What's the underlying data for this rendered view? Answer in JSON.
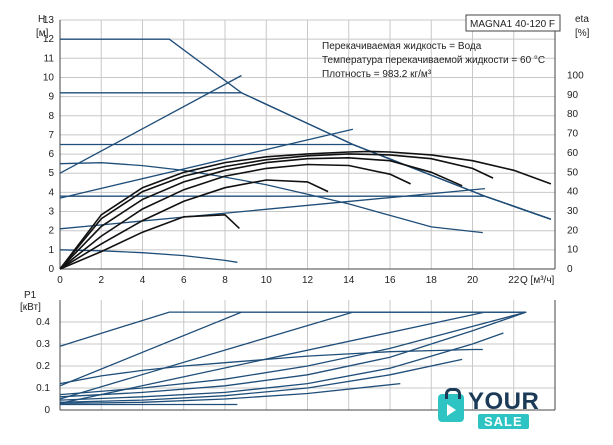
{
  "chart_data": [
    {
      "id": "head",
      "type": "line",
      "title": "MAGNA1 40-120 F",
      "info": [
        "Перекачиваемая жидкость = Вода",
        "Температура перекачиваемой жидкости = 60 °C",
        "Плотность = 983.2 кг/м³"
      ],
      "ylabel": "H",
      "yunit": "[м]",
      "y2label": "eta",
      "y2unit": "[%]",
      "xlabel": "Q [м³/ч]",
      "xlim": [
        0,
        24
      ],
      "ylim": [
        0,
        13
      ],
      "y2lim": [
        0,
        100
      ],
      "xticks": [
        0,
        2,
        4,
        6,
        8,
        10,
        12,
        14,
        16,
        18,
        20,
        22
      ],
      "yticks": [
        0,
        1,
        2,
        3,
        4,
        5,
        6,
        7,
        8,
        9,
        10,
        11,
        12,
        13
      ],
      "y2ticks": [
        0,
        10,
        20,
        30,
        40,
        50,
        60,
        70,
        80,
        90,
        100
      ],
      "grid": true,
      "pump_curves": [
        {
          "x": [
            0,
            5.3,
            8.8,
            14.2,
            20.6,
            23.8
          ],
          "y": [
            12,
            12,
            9.2,
            6.5,
            3.8,
            2.6
          ]
        },
        {
          "x": [
            0,
            8.8,
            14.2,
            20.6,
            23.8
          ],
          "y": [
            9.2,
            9.2,
            6.5,
            3.8,
            2.6
          ]
        },
        {
          "x": [
            0,
            14.2,
            20.6,
            23.8
          ],
          "y": [
            6.5,
            6.5,
            3.8,
            2.6
          ]
        },
        {
          "x": [
            0,
            20.6,
            23.8
          ],
          "y": [
            3.8,
            3.8,
            2.6
          ]
        }
      ],
      "system_curves": [
        {
          "x": [
            0,
            8.8
          ],
          "y": [
            5.0,
            10.1
          ]
        },
        {
          "x": [
            0,
            14.2
          ],
          "y": [
            3.7,
            7.3
          ]
        },
        {
          "x": [
            0,
            20.6
          ],
          "y": [
            2.1,
            4.2
          ]
        },
        {
          "x": [
            0,
            2,
            4,
            6,
            8,
            10,
            12,
            14,
            16,
            18,
            20.5
          ],
          "y": [
            5.5,
            5.55,
            5.4,
            5.15,
            4.8,
            4.4,
            3.9,
            3.4,
            2.8,
            2.2,
            1.9
          ]
        },
        {
          "x": [
            0,
            2,
            4,
            6,
            8,
            8.6
          ],
          "y": [
            1.0,
            0.95,
            0.85,
            0.7,
            0.45,
            0.35
          ]
        }
      ],
      "efficiency_curves": [
        {
          "x": [
            0,
            2,
            4,
            6,
            8,
            10,
            12,
            14,
            15,
            16,
            18,
            20,
            22,
            23.8
          ],
          "y": [
            0,
            28,
            42,
            50,
            55,
            58,
            59.5,
            60.5,
            60.8,
            60.5,
            59,
            56,
            51,
            44
          ]
        },
        {
          "x": [
            0,
            2,
            4,
            6,
            8,
            10,
            12,
            14,
            16,
            18,
            20,
            21
          ],
          "y": [
            0,
            26,
            40,
            48,
            53,
            56.5,
            58.5,
            59.5,
            59,
            57,
            52,
            47
          ]
        },
        {
          "x": [
            0,
            2,
            4,
            6,
            8,
            10,
            12,
            14,
            16,
            18,
            19.5
          ],
          "y": [
            0,
            22,
            36,
            45,
            51,
            55,
            57,
            57.5,
            56,
            50,
            43
          ]
        },
        {
          "x": [
            0,
            2,
            4,
            6,
            8,
            10,
            12,
            14,
            16,
            17
          ],
          "y": [
            0,
            17,
            31,
            41,
            48,
            52,
            54,
            53.5,
            49,
            44
          ]
        },
        {
          "x": [
            0,
            2,
            4,
            6,
            8,
            10,
            12,
            13
          ],
          "y": [
            0,
            13,
            25,
            35,
            42,
            46,
            45,
            40
          ]
        },
        {
          "x": [
            0,
            2,
            4,
            6,
            8,
            8.7
          ],
          "y": [
            0,
            9,
            19,
            27,
            28,
            21
          ]
        }
      ]
    },
    {
      "id": "power",
      "type": "line",
      "ylabel": "P1",
      "yunit": "[кВт]",
      "xlim": [
        0,
        24
      ],
      "ylim": [
        0,
        0.5
      ],
      "yticks": [
        0,
        0.1,
        0.2,
        0.3,
        0.4
      ],
      "grid": true,
      "max_curves": [
        {
          "x": [
            0,
            5.3,
            22.6
          ],
          "y": [
            0.29,
            0.445,
            0.445
          ]
        },
        {
          "x": [
            0,
            8.8,
            22.6
          ],
          "y": [
            0.11,
            0.445,
            0.445
          ]
        },
        {
          "x": [
            0,
            14.2,
            22.6
          ],
          "y": [
            0.05,
            0.445,
            0.445
          ]
        },
        {
          "x": [
            0,
            20.6,
            22.6
          ],
          "y": [
            0.03,
            0.445,
            0.445
          ]
        }
      ],
      "speed_curves": [
        {
          "x": [
            0,
            2,
            4,
            6,
            8,
            10,
            12,
            14,
            16,
            18,
            20,
            20.5
          ],
          "y": [
            0.12,
            0.155,
            0.18,
            0.2,
            0.215,
            0.23,
            0.245,
            0.255,
            0.265,
            0.27,
            0.275,
            0.275
          ]
        },
        {
          "x": [
            0,
            4,
            8,
            12,
            16,
            20,
            22.6
          ],
          "y": [
            0.07,
            0.1,
            0.14,
            0.2,
            0.28,
            0.38,
            0.445
          ]
        },
        {
          "x": [
            0,
            4,
            8,
            12,
            16,
            20,
            22.6
          ],
          "y": [
            0.06,
            0.08,
            0.11,
            0.16,
            0.24,
            0.36,
            0.445
          ]
        },
        {
          "x": [
            0,
            4,
            8,
            12,
            16,
            20,
            21.5
          ],
          "y": [
            0.045,
            0.06,
            0.08,
            0.12,
            0.19,
            0.3,
            0.35
          ]
        },
        {
          "x": [
            0,
            4,
            8,
            12,
            16,
            19.5
          ],
          "y": [
            0.035,
            0.045,
            0.065,
            0.1,
            0.16,
            0.23
          ]
        },
        {
          "x": [
            0,
            4,
            8,
            12,
            16.5
          ],
          "y": [
            0.03,
            0.035,
            0.05,
            0.075,
            0.12
          ]
        },
        {
          "x": [
            0,
            8.6
          ],
          "y": [
            0.025,
            0.025
          ]
        }
      ]
    }
  ],
  "logo": {
    "word1": "YOUR",
    "word2": "SALE"
  }
}
